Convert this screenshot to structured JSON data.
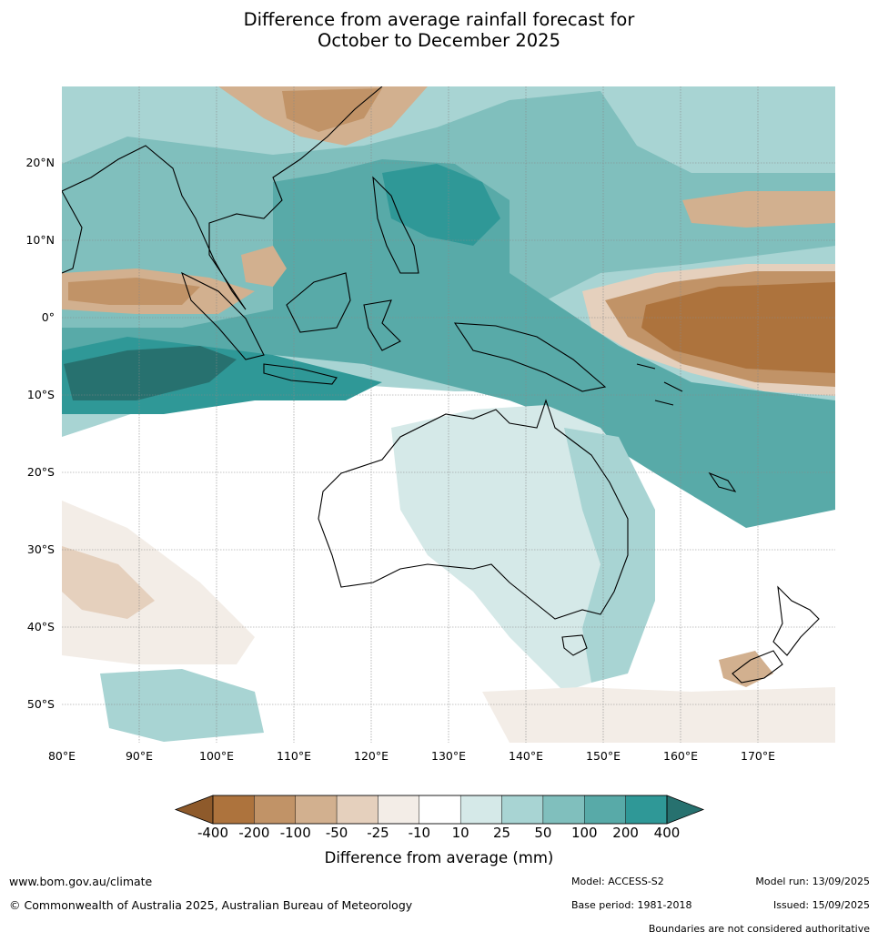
{
  "title_line1": "Difference from average rainfall forecast for",
  "title_line2": "October to December 2025",
  "latitude_labels": [
    "20°N",
    "10°N",
    "0°",
    "10°S",
    "20°S",
    "30°S",
    "40°S",
    "50°S"
  ],
  "longitude_labels": [
    "80°E",
    "90°E",
    "100°E",
    "110°E",
    "120°E",
    "130°E",
    "140°E",
    "150°E",
    "160°E",
    "170°E"
  ],
  "colorbar": {
    "title": "Difference from average (mm)",
    "ticks": [
      "-400",
      "-200",
      "-100",
      "-50",
      "-25",
      "-10",
      "10",
      "25",
      "50",
      "100",
      "200",
      "400"
    ],
    "colors": [
      "#8e5a2b",
      "#ad733d",
      "#c19367",
      "#d2b08f",
      "#e5d0bd",
      "#f3ede7",
      "#ffffff",
      "#d5e9e8",
      "#a8d4d3",
      "#80bfbd",
      "#58aaa8",
      "#2f9897",
      "#27716f"
    ]
  },
  "footer": {
    "website": "www.bom.gov.au/climate",
    "copyright": "© Commonwealth of Australia 2025, Australian Bureau of Meteorology",
    "model": "Model: ACCESS-S2",
    "base_period": "Base period: 1981-2018",
    "model_run": "Model run: 13/09/2025",
    "issued": "Issued: 15/09/2025",
    "boundaries_note": "Boundaries are not considered authoritative"
  }
}
